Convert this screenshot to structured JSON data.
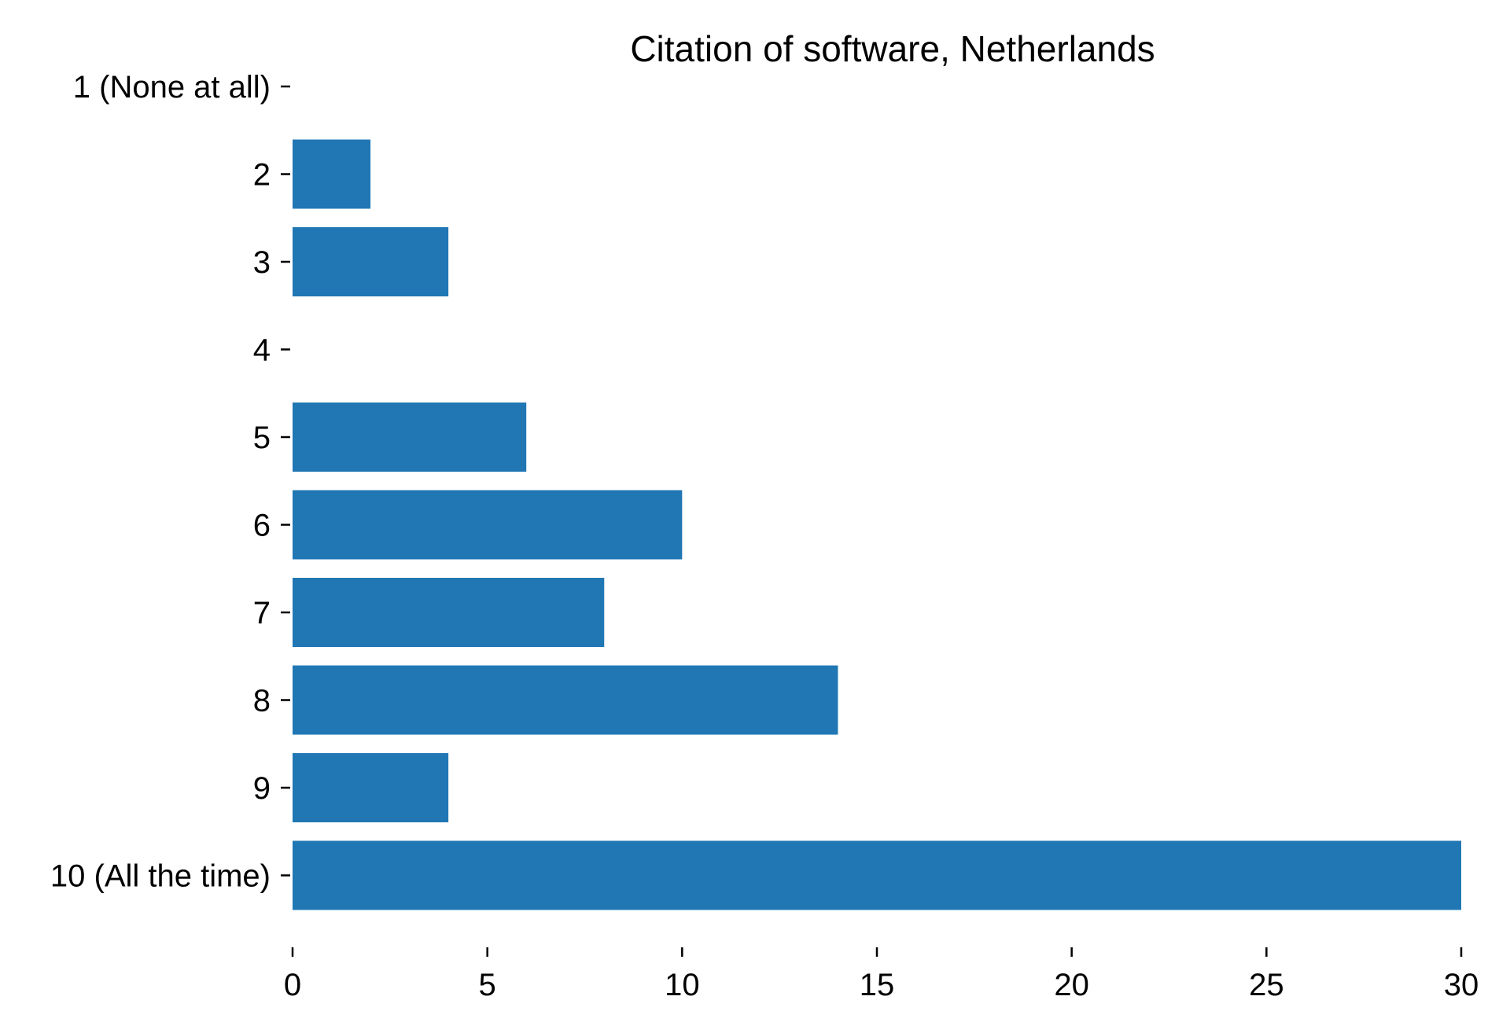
{
  "chart_data": {
    "type": "bar",
    "orientation": "horizontal",
    "title": "Citation of software, Netherlands",
    "xlabel": "",
    "ylabel": "",
    "categories": [
      "1 (None at all)",
      "2",
      "3",
      "4",
      "5",
      "6",
      "7",
      "8",
      "9",
      "10 (All the time)"
    ],
    "values": [
      0,
      2,
      4,
      0,
      6,
      10,
      8,
      14,
      4,
      30
    ],
    "xlim": [
      0,
      30
    ],
    "x_ticks": [
      0,
      5,
      10,
      15,
      20,
      25,
      30
    ],
    "grid": false,
    "legend": "none",
    "bar_color": "#2077b4"
  }
}
